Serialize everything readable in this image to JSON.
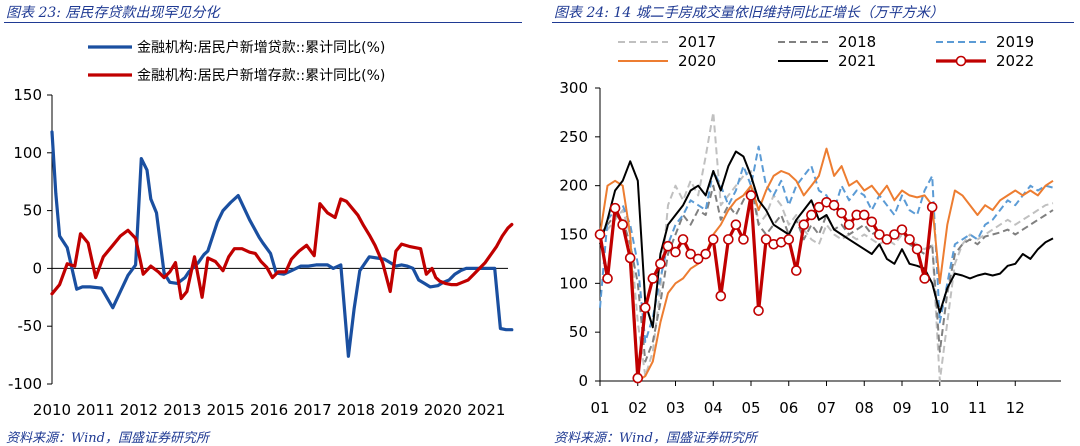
{
  "left": {
    "title": "图表 23:  居民存贷款出现罕见分化",
    "source": "资料来源：Wind，国盛证券研究所"
  },
  "right": {
    "title": "图表 24:  14 城二手房成交量依旧维持同比正增长（万平方米）",
    "source": "资料来源：Wind，国盛证券研究所"
  },
  "chart_data": [
    {
      "type": "line",
      "title": "居民存贷款出现罕见分化",
      "xlabel": "",
      "ylabel": "",
      "ylim": [
        -100,
        150
      ],
      "yticks": [
        150,
        100,
        50,
        0,
        -50,
        -100
      ],
      "xlim": [
        2010,
        2022
      ],
      "xticks": [
        "2010",
        "2011",
        "2012",
        "2013",
        "2015",
        "2016",
        "2017",
        "2018",
        "2019",
        "2020",
        "2021"
      ],
      "legend": "top",
      "series": [
        {
          "name": "金融机构:居民户新增贷款::累计同比(%)",
          "color": "#1a4fa0",
          "x": [
            2010.0,
            2010.1,
            2010.2,
            2010.4,
            2010.65,
            2010.8,
            2011.0,
            2011.3,
            2011.6,
            2011.8,
            2012.0,
            2012.2,
            2012.35,
            2012.5,
            2012.6,
            2012.75,
            2012.95,
            2013.1,
            2013.3,
            2013.5,
            2013.6,
            2013.85,
            2014.0,
            2014.1,
            2014.35,
            2014.5,
            2014.7,
            2014.9,
            2015.2,
            2015.45,
            2015.55,
            2015.75,
            2015.9,
            2016.1,
            2016.3,
            2016.55,
            2016.75,
            2016.95,
            2017.1,
            2017.25,
            2017.4,
            2017.6,
            2017.8,
            2017.95,
            2018.1,
            2018.35,
            2018.55,
            2018.75,
            2018.9,
            2019.05,
            2019.2,
            2019.35,
            2019.5,
            2019.65,
            2019.8,
            2019.95,
            2020.15,
            2020.3,
            2020.45,
            2020.6,
            2020.75,
            2020.9,
            2021.0,
            2021.15,
            2021.3,
            2021.5,
            2021.65,
            2021.8,
            2021.95,
            2022.1
          ],
          "values": [
            118,
            65,
            28,
            18,
            -18,
            -16,
            -16,
            -17,
            -34,
            -20,
            -6,
            3,
            95,
            85,
            60,
            48,
            -4,
            -12,
            -13,
            -8,
            -3,
            5,
            12,
            15,
            40,
            50,
            57,
            63,
            42,
            27,
            22,
            13,
            -4,
            -5,
            -2,
            2,
            2,
            3,
            3,
            3,
            0,
            3,
            -76,
            -35,
            -2,
            10,
            9,
            8,
            5,
            2,
            3,
            2,
            0,
            -10,
            -13,
            -16,
            -15,
            -12,
            -10,
            -5,
            -2,
            0,
            0,
            0,
            0,
            0,
            0,
            -52,
            -53,
            -53
          ]
        },
        {
          "name": "金融机构:居民户新增存款::累计同比(%)",
          "color": "#c00000",
          "x": [
            2010.0,
            2010.2,
            2010.4,
            2010.6,
            2010.75,
            2010.95,
            2011.15,
            2011.35,
            2011.6,
            2011.8,
            2012.0,
            2012.2,
            2012.4,
            2012.6,
            2012.8,
            2012.95,
            2013.1,
            2013.25,
            2013.4,
            2013.55,
            2013.75,
            2013.95,
            2014.1,
            2014.3,
            2014.5,
            2014.65,
            2014.8,
            2015.0,
            2015.2,
            2015.35,
            2015.5,
            2015.65,
            2015.8,
            2015.95,
            2016.15,
            2016.3,
            2016.5,
            2016.7,
            2016.9,
            2017.05,
            2017.25,
            2017.45,
            2017.6,
            2017.75,
            2017.9,
            2018.05,
            2018.2,
            2018.35,
            2018.5,
            2018.7,
            2018.9,
            2019.05,
            2019.2,
            2019.4,
            2019.55,
            2019.7,
            2019.85,
            2020.0,
            2020.1,
            2020.2,
            2020.35,
            2020.5,
            2020.65,
            2020.8,
            2020.95,
            2021.1,
            2021.25,
            2021.4,
            2021.55,
            2021.7,
            2021.85,
            2022.0,
            2022.1
          ],
          "values": [
            -22,
            -14,
            4,
            2,
            30,
            22,
            -8,
            10,
            20,
            28,
            33,
            26,
            -5,
            2,
            -3,
            -8,
            -3,
            5,
            -26,
            -20,
            10,
            -25,
            9,
            6,
            -2,
            10,
            17,
            17,
            14,
            13,
            6,
            1,
            -8,
            -3,
            -3,
            8,
            15,
            20,
            11,
            56,
            48,
            44,
            60,
            58,
            52,
            46,
            37,
            29,
            20,
            5,
            -20,
            15,
            21,
            19,
            18,
            17,
            -5,
            0,
            -8,
            -11,
            -13,
            -14,
            -14,
            -12,
            -10,
            -5,
            0,
            5,
            12,
            19,
            28,
            35,
            38
          ]
        }
      ]
    },
    {
      "type": "line",
      "title": "14 城二手房成交量依旧维持同比正增长（万平方米）",
      "xlabel": "",
      "ylabel": "",
      "ylim": [
        0,
        300
      ],
      "yticks": [
        300,
        250,
        200,
        150,
        100,
        50,
        0
      ],
      "xlim": [
        1,
        13
      ],
      "xticks": [
        "01",
        "02",
        "03",
        "04",
        "05",
        "06",
        "07",
        "08",
        "09",
        "10",
        "11",
        "12"
      ],
      "legend": "top",
      "series": [
        {
          "name": "2017",
          "color": "#c0c0c0",
          "dash": "dashed",
          "x": [
            1.0,
            1.2,
            1.4,
            1.6,
            1.8,
            2.0,
            2.2,
            2.4,
            2.6,
            2.8,
            3.0,
            3.2,
            3.4,
            3.6,
            3.8,
            4.0,
            4.2,
            4.4,
            4.6,
            4.8,
            5.0,
            5.2,
            5.4,
            5.6,
            5.8,
            6.0,
            6.2,
            6.4,
            6.6,
            6.8,
            7.0,
            7.2,
            7.4,
            7.6,
            7.8,
            8.0,
            8.2,
            8.4,
            8.6,
            8.8,
            9.0,
            9.2,
            9.4,
            9.6,
            9.8,
            10.0,
            10.2,
            10.4,
            10.6,
            10.8,
            11.0,
            11.2,
            11.4,
            11.6,
            11.8,
            12.0,
            12.2,
            12.4,
            12.6,
            12.8,
            13.0
          ],
          "values": [
            145,
            155,
            165,
            175,
            150,
            60,
            5,
            30,
            95,
            180,
            200,
            185,
            205,
            190,
            230,
            275,
            180,
            190,
            200,
            210,
            215,
            160,
            170,
            190,
            180,
            160,
            170,
            155,
            145,
            140,
            160,
            150,
            145,
            150,
            145,
            150,
            145,
            140,
            145,
            140,
            150,
            145,
            140,
            135,
            140,
            0,
            60,
            120,
            140,
            150,
            145,
            150,
            155,
            160,
            165,
            160,
            165,
            170,
            175,
            180,
            182
          ]
        },
        {
          "name": "2018",
          "color": "#808080",
          "dash": "dashed",
          "x": [
            1.0,
            1.2,
            1.4,
            1.6,
            1.8,
            2.0,
            2.2,
            2.4,
            2.6,
            2.8,
            3.0,
            3.2,
            3.4,
            3.6,
            3.8,
            4.0,
            4.2,
            4.4,
            4.6,
            4.8,
            5.0,
            5.2,
            5.4,
            5.6,
            5.8,
            6.0,
            6.2,
            6.4,
            6.6,
            6.8,
            7.0,
            7.2,
            7.4,
            7.6,
            7.8,
            8.0,
            8.2,
            8.4,
            8.6,
            8.8,
            9.0,
            9.2,
            9.4,
            9.6,
            9.8,
            10.0,
            10.2,
            10.4,
            10.6,
            10.8,
            11.0,
            11.2,
            11.4,
            11.6,
            11.8,
            12.0,
            12.2,
            12.4,
            12.6,
            12.8,
            13.0
          ],
          "values": [
            150,
            160,
            170,
            165,
            140,
            100,
            20,
            40,
            80,
            130,
            150,
            170,
            160,
            175,
            170,
            200,
            165,
            180,
            170,
            185,
            200,
            160,
            150,
            160,
            170,
            150,
            165,
            145,
            160,
            150,
            170,
            155,
            160,
            150,
            155,
            160,
            150,
            155,
            145,
            150,
            155,
            140,
            135,
            130,
            140,
            30,
            90,
            130,
            140,
            145,
            140,
            148,
            150,
            152,
            155,
            150,
            155,
            160,
            165,
            170,
            175
          ]
        },
        {
          "name": "2019",
          "color": "#5b9bd5",
          "dash": "dashed",
          "x": [
            1.0,
            1.2,
            1.4,
            1.6,
            1.8,
            2.0,
            2.2,
            2.4,
            2.6,
            2.8,
            3.0,
            3.2,
            3.4,
            3.6,
            3.8,
            4.0,
            4.2,
            4.4,
            4.6,
            4.8,
            5.0,
            5.2,
            5.4,
            5.6,
            5.8,
            6.0,
            6.2,
            6.4,
            6.6,
            6.8,
            7.0,
            7.2,
            7.4,
            7.6,
            7.8,
            8.0,
            8.2,
            8.4,
            8.6,
            8.8,
            9.0,
            9.2,
            9.4,
            9.6,
            9.8,
            10.0,
            10.2,
            10.4,
            10.6,
            10.8,
            11.0,
            11.2,
            11.4,
            11.6,
            11.8,
            12.0,
            12.2,
            12.4,
            12.6,
            12.8,
            13.0
          ],
          "values": [
            75,
            165,
            175,
            180,
            160,
            120,
            40,
            65,
            105,
            140,
            160,
            170,
            185,
            180,
            175,
            215,
            200,
            180,
            195,
            220,
            200,
            240,
            200,
            190,
            205,
            180,
            200,
            210,
            220,
            195,
            190,
            175,
            200,
            185,
            195,
            190,
            175,
            190,
            180,
            170,
            190,
            175,
            170,
            195,
            210,
            60,
            100,
            140,
            145,
            150,
            145,
            160,
            165,
            175,
            185,
            180,
            190,
            200,
            195,
            200,
            198
          ]
        },
        {
          "name": "2020",
          "color": "#ed7d31",
          "dash": "solid",
          "x": [
            1.0,
            1.2,
            1.4,
            1.6,
            1.8,
            2.0,
            2.2,
            2.4,
            2.6,
            2.8,
            3.0,
            3.2,
            3.4,
            3.6,
            3.8,
            4.0,
            4.2,
            4.4,
            4.6,
            4.8,
            5.0,
            5.2,
            5.4,
            5.6,
            5.8,
            6.0,
            6.2,
            6.4,
            6.6,
            6.8,
            7.0,
            7.2,
            7.4,
            7.6,
            7.8,
            8.0,
            8.2,
            8.4,
            8.6,
            8.8,
            9.0,
            9.2,
            9.4,
            9.6,
            9.8,
            10.0,
            10.2,
            10.4,
            10.6,
            10.8,
            11.0,
            11.2,
            11.4,
            11.6,
            11.8,
            12.0,
            12.2,
            12.4,
            12.6,
            12.8,
            13.0
          ],
          "values": [
            150,
            200,
            205,
            200,
            150,
            0,
            5,
            20,
            60,
            90,
            100,
            105,
            115,
            120,
            130,
            150,
            160,
            175,
            185,
            190,
            200,
            175,
            195,
            210,
            215,
            212,
            205,
            190,
            200,
            210,
            238,
            210,
            220,
            200,
            205,
            195,
            200,
            190,
            200,
            185,
            195,
            190,
            188,
            190,
            180,
            100,
            160,
            195,
            190,
            180,
            170,
            180,
            175,
            185,
            190,
            195,
            190,
            195,
            190,
            200,
            205
          ]
        },
        {
          "name": "2021",
          "color": "#000000",
          "dash": "solid",
          "x": [
            1.0,
            1.2,
            1.4,
            1.6,
            1.8,
            2.0,
            2.2,
            2.4,
            2.6,
            2.8,
            3.0,
            3.2,
            3.4,
            3.6,
            3.8,
            4.0,
            4.2,
            4.4,
            4.6,
            4.8,
            5.0,
            5.2,
            5.4,
            5.6,
            5.8,
            6.0,
            6.2,
            6.4,
            6.6,
            6.8,
            7.0,
            7.2,
            7.4,
            7.6,
            7.8,
            8.0,
            8.2,
            8.4,
            8.6,
            8.8,
            9.0,
            9.2,
            9.4,
            9.6,
            9.8,
            10.0,
            10.2,
            10.4,
            10.6,
            10.8,
            11.0,
            11.2,
            11.4,
            11.6,
            11.8,
            12.0,
            12.2,
            12.4,
            12.6,
            12.8,
            13.0
          ],
          "values": [
            140,
            165,
            195,
            205,
            225,
            205,
            80,
            55,
            130,
            160,
            170,
            180,
            195,
            200,
            190,
            215,
            195,
            220,
            235,
            230,
            210,
            185,
            175,
            160,
            155,
            150,
            165,
            175,
            185,
            165,
            170,
            155,
            150,
            145,
            140,
            135,
            130,
            140,
            125,
            120,
            135,
            120,
            118,
            115,
            100,
            70,
            95,
            110,
            108,
            105,
            108,
            110,
            108,
            110,
            118,
            120,
            130,
            125,
            135,
            142,
            146
          ]
        },
        {
          "name": "2022",
          "color": "#c00000",
          "dash": "solid",
          "marker": "circle",
          "x": [
            1.0,
            1.2,
            1.4,
            1.6,
            1.8,
            2.0,
            2.2,
            2.4,
            2.6,
            2.8,
            3.0,
            3.2,
            3.4,
            3.6,
            3.8,
            4.0,
            4.2,
            4.4,
            4.6,
            4.8,
            5.0,
            5.2,
            5.4,
            5.6,
            5.8,
            6.0,
            6.2,
            6.4,
            6.6,
            6.8,
            7.0,
            7.2,
            7.4,
            7.6,
            7.8,
            8.0,
            8.2,
            8.4,
            8.6,
            8.8,
            9.0,
            9.2,
            9.4,
            9.6,
            9.8
          ],
          "values": [
            150,
            105,
            177,
            160,
            126,
            3,
            75,
            105,
            120,
            138,
            132,
            145,
            130,
            125,
            130,
            145,
            87,
            145,
            160,
            145,
            190,
            72,
            145,
            140,
            142,
            145,
            113,
            160,
            170,
            178,
            183,
            180,
            172,
            160,
            170,
            170,
            163,
            150,
            145,
            150,
            155,
            145,
            135,
            105,
            178
          ]
        }
      ]
    }
  ]
}
